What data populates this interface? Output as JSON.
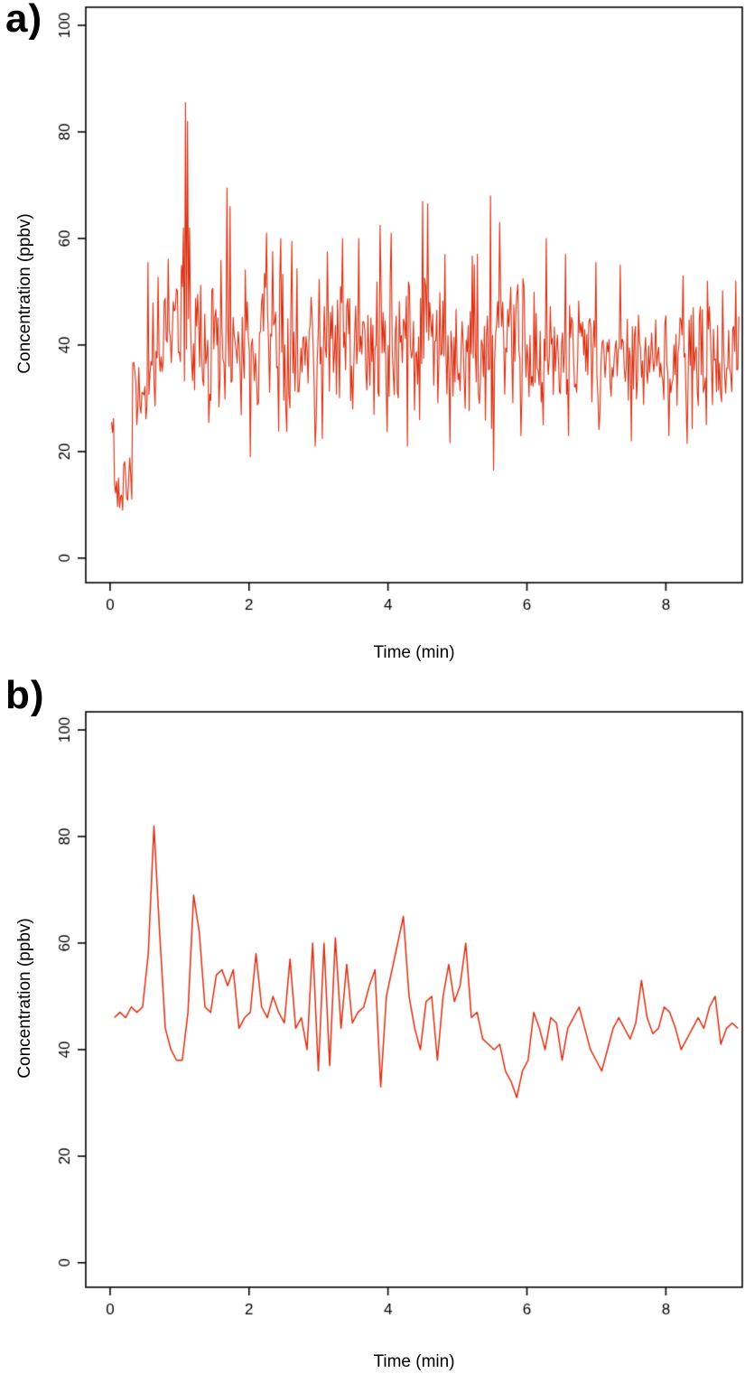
{
  "figure_title": "",
  "chart_data": [
    {
      "panel_label": "a)",
      "type": "line",
      "title": "",
      "xlabel": "Time (min)",
      "ylabel": "Concentration (ppbv)",
      "xticks": [
        0,
        2,
        4,
        6,
        8
      ],
      "yticks": [
        0,
        20,
        40,
        60,
        80,
        100
      ],
      "xlim": [
        0,
        9.1
      ],
      "ylim": [
        0,
        100
      ],
      "axis_xrange": [
        -0.35,
        9.1
      ],
      "axis_yrange": [
        -4.6,
        103.4
      ],
      "grid": false,
      "legend": "none",
      "line_color": "#da2e0f",
      "line_width": 1.1,
      "series": {
        "generator": {
          "seed": 20,
          "n": 620,
          "x_start": 0.02,
          "x_end": 9.05,
          "clip": [
            9,
            86
          ],
          "segments": [
            {
              "until": 0.06,
              "mean": 25,
              "sd": 1.2
            },
            {
              "until": 0.32,
              "mean": 14.5,
              "sd": 2.6
            },
            {
              "until": 0.55,
              "mean": 30,
              "sd": 5
            },
            {
              "until": 6.0,
              "mean": 40.5,
              "sd": 7.2
            },
            {
              "until": 9.3,
              "mean": 38,
              "sd": 5.2
            }
          ],
          "events": [
            [
              0.13,
              9.5
            ],
            [
              0.55,
              55.5
            ],
            [
              1.05,
              62
            ],
            [
              1.08,
              85.5
            ],
            [
              1.11,
              82
            ],
            [
              1.14,
              62
            ],
            [
              1.68,
              69.5
            ],
            [
              1.72,
              66
            ],
            [
              2.02,
              19
            ],
            [
              2.25,
              61
            ],
            [
              2.45,
              60
            ],
            [
              2.62,
              59.5
            ],
            [
              2.95,
              21
            ],
            [
              3.05,
              22.5
            ],
            [
              3.12,
              57.5
            ],
            [
              3.35,
              60
            ],
            [
              3.58,
              60
            ],
            [
              3.88,
              62.5
            ],
            [
              4.05,
              61
            ],
            [
              4.28,
              21
            ],
            [
              4.5,
              67
            ],
            [
              4.57,
              66.5
            ],
            [
              4.82,
              57
            ],
            [
              5.28,
              57
            ],
            [
              5.48,
              68
            ],
            [
              5.52,
              16.5
            ],
            [
              5.6,
              63
            ],
            [
              5.92,
              23
            ],
            [
              6.28,
              60
            ],
            [
              6.55,
              57
            ],
            [
              6.6,
              23
            ],
            [
              7.0,
              55.5
            ],
            [
              7.35,
              55
            ],
            [
              7.5,
              22
            ],
            [
              8.05,
              23
            ],
            [
              8.25,
              53
            ],
            [
              8.3,
              21.5
            ],
            [
              8.6,
              52
            ],
            [
              9.0,
              52
            ]
          ]
        }
      }
    },
    {
      "panel_label": "b)",
      "type": "line",
      "title": "",
      "xlabel": "Time (min)",
      "ylabel": "Concentration (ppbv)",
      "xticks": [
        0,
        2,
        4,
        6,
        8
      ],
      "yticks": [
        0,
        20,
        40,
        60,
        80,
        100
      ],
      "xlim": [
        0,
        9.1
      ],
      "ylim": [
        0,
        100
      ],
      "axis_xrange": [
        -0.35,
        9.1
      ],
      "axis_yrange": [
        -4.6,
        103.4
      ],
      "grid": false,
      "legend": "none",
      "line_color": "#da2e0f",
      "line_width": 1.5,
      "series": {
        "x_start": 0.06,
        "x_step": 0.0816,
        "values": [
          46,
          47,
          46,
          48,
          47,
          48,
          58,
          82,
          62,
          44,
          40,
          38,
          38,
          47,
          69,
          62,
          48,
          47,
          54,
          55,
          52,
          55,
          44,
          46,
          47,
          58,
          48,
          46,
          50,
          47,
          45,
          57,
          44,
          46,
          40,
          60,
          36,
          60,
          37,
          61,
          44,
          56,
          45,
          47,
          48,
          52,
          55,
          33,
          50,
          55,
          60,
          65,
          50,
          44,
          40,
          49,
          50,
          38,
          50,
          56,
          49,
          52,
          60,
          46,
          47,
          42,
          41,
          40,
          41,
          36,
          34,
          31,
          36,
          38,
          47,
          44,
          40,
          46,
          45,
          38,
          44,
          46,
          48,
          44,
          40,
          38,
          36,
          40,
          44,
          46,
          44,
          42,
          45,
          53,
          46,
          43,
          44,
          48,
          47,
          44,
          40,
          42,
          44,
          46,
          44,
          48,
          50,
          41,
          44,
          45,
          44
        ]
      }
    }
  ]
}
